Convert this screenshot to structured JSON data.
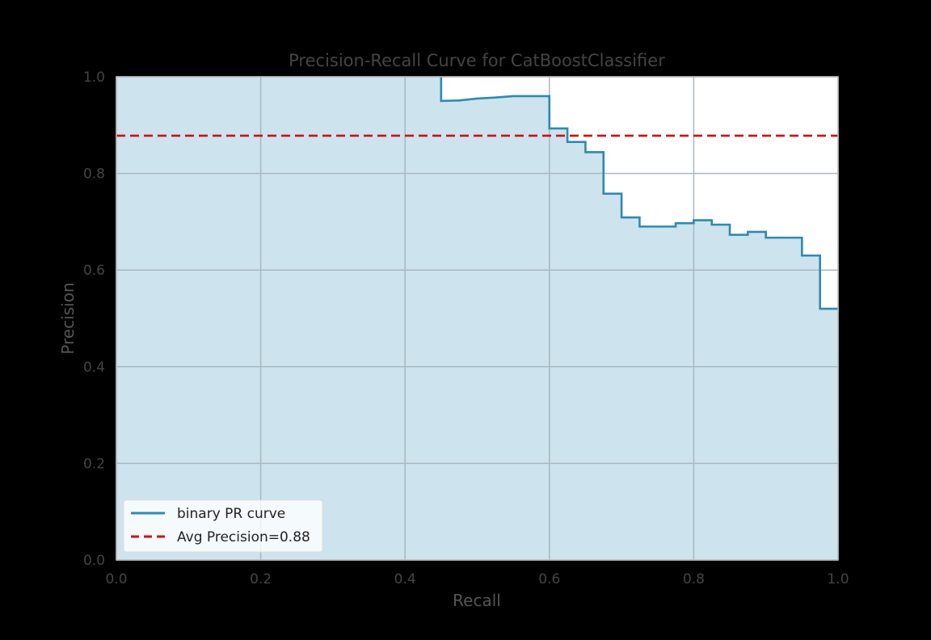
{
  "chart_data": {
    "type": "line",
    "title": "Precision-Recall Curve for CatBoostClassifier",
    "xlabel": "Recall",
    "ylabel": "Precision",
    "xlim": [
      0.0,
      1.0
    ],
    "ylim": [
      0.0,
      1.0
    ],
    "x_ticks": [
      "0.0",
      "0.2",
      "0.4",
      "0.6",
      "0.8",
      "1.0"
    ],
    "y_ticks": [
      "0.0",
      "0.2",
      "0.4",
      "0.6",
      "0.8",
      "1.0"
    ],
    "grid": true,
    "legend_position": "lower-left",
    "series": [
      {
        "name": "binary PR curve",
        "style": "step-fill",
        "color": "#2e8ab0",
        "fill_color": "#cde3ee",
        "points": [
          [
            0.0,
            1.0
          ],
          [
            0.45,
            1.0
          ],
          [
            0.45,
            0.95
          ],
          [
            0.475,
            0.951
          ],
          [
            0.5,
            0.955
          ],
          [
            0.525,
            0.957
          ],
          [
            0.55,
            0.96
          ],
          [
            0.575,
            0.96
          ],
          [
            0.6,
            0.96
          ],
          [
            0.6,
            0.893
          ],
          [
            0.625,
            0.893
          ],
          [
            0.625,
            0.865
          ],
          [
            0.65,
            0.865
          ],
          [
            0.65,
            0.844
          ],
          [
            0.675,
            0.844
          ],
          [
            0.675,
            0.758
          ],
          [
            0.7,
            0.758
          ],
          [
            0.7,
            0.709
          ],
          [
            0.725,
            0.709
          ],
          [
            0.725,
            0.69
          ],
          [
            0.775,
            0.69
          ],
          [
            0.775,
            0.697
          ],
          [
            0.8,
            0.697
          ],
          [
            0.8,
            0.703
          ],
          [
            0.825,
            0.703
          ],
          [
            0.825,
            0.694
          ],
          [
            0.85,
            0.694
          ],
          [
            0.85,
            0.673
          ],
          [
            0.875,
            0.673
          ],
          [
            0.875,
            0.679
          ],
          [
            0.9,
            0.679
          ],
          [
            0.9,
            0.667
          ],
          [
            0.95,
            0.667
          ],
          [
            0.95,
            0.63
          ],
          [
            0.975,
            0.63
          ],
          [
            0.975,
            0.52
          ],
          [
            1.0,
            0.52
          ]
        ]
      },
      {
        "name": "Avg Precision=0.88",
        "style": "dashed-hline",
        "color": "#cc1111",
        "y": 0.878
      }
    ]
  }
}
